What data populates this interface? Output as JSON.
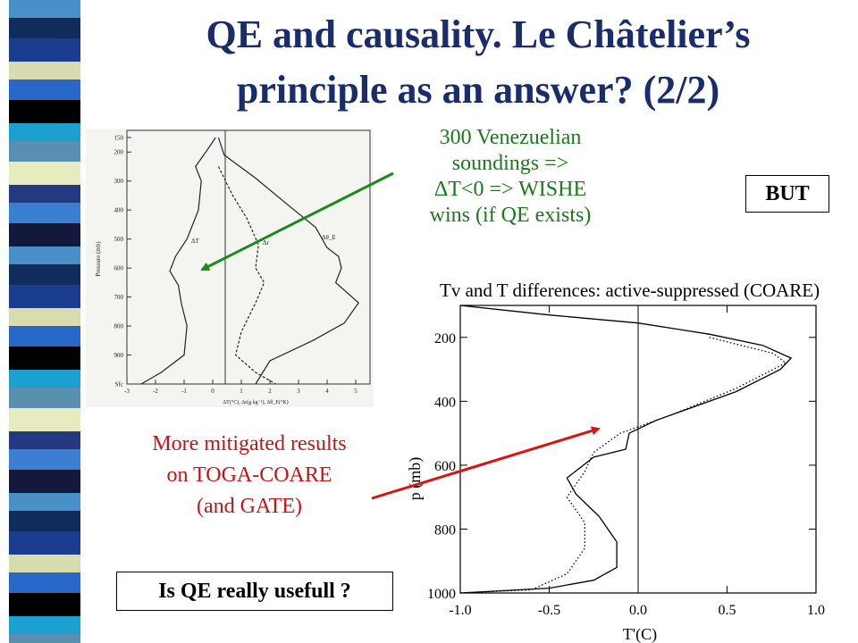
{
  "slide": {
    "title_line1": "QE and causality. Le Châtelier’s",
    "title_line2": "principle as an answer? (2/2)",
    "venezuela_note": [
      "300 Venezuelian",
      "soundings =>",
      "ΔT<0 => WISHE",
      "wins (if QE exists)"
    ],
    "but_label": "BUT",
    "coare_note": [
      "More mitigated results",
      "on TOGA-COARE",
      "(and GATE)"
    ],
    "question_label": "Is QE really usefull ?",
    "colors": {
      "title": "#1a2d6b",
      "green_note": "#1a7a1a",
      "red_note": "#cc1111",
      "green_arrow": "#1a8a1a",
      "red_arrow": "#dd1111"
    }
  },
  "chart_data": [
    {
      "type": "line",
      "xlabel": "ΔT(°C), Δr(g kg⁻¹), Δθ_E(°K)",
      "ylabel": "Pressure (mb)",
      "x_ticks": [
        "-3",
        "-2",
        "-1",
        "0",
        "1",
        "2",
        "3",
        "4",
        "5"
      ],
      "y_ticks": [
        "150",
        "200",
        "300",
        "400",
        "500",
        "600",
        "700",
        "800",
        "900",
        "Sfc"
      ],
      "xlim": [
        -3,
        5.5
      ],
      "series": [
        {
          "name": "ΔT",
          "points": [
            [
              0.1,
              150
            ],
            [
              -0.1,
              180
            ],
            [
              -0.6,
              250
            ],
            [
              -0.4,
              300
            ],
            [
              -0.5,
              400
            ],
            [
              -0.9,
              500
            ],
            [
              -1.3,
              560
            ],
            [
              -1.5,
              610
            ],
            [
              -1.2,
              660
            ],
            [
              -1.1,
              720
            ],
            [
              -0.9,
              800
            ],
            [
              -1.0,
              900
            ],
            [
              -1.8,
              960
            ],
            [
              -2.5,
              1000
            ]
          ]
        },
        {
          "name": "Δr",
          "points": [
            [
              0.2,
              250
            ],
            [
              0.7,
              350
            ],
            [
              1.2,
              430
            ],
            [
              1.6,
              520
            ],
            [
              1.5,
              600
            ],
            [
              1.8,
              650
            ],
            [
              1.5,
              720
            ],
            [
              1.0,
              820
            ],
            [
              0.8,
              900
            ],
            [
              1.5,
              960
            ],
            [
              2.2,
              1000
            ]
          ]
        },
        {
          "name": "Δθ_E",
          "points": [
            [
              0.2,
              150
            ],
            [
              0.4,
              210
            ],
            [
              1.5,
              290
            ],
            [
              2.6,
              380
            ],
            [
              3.6,
              460
            ],
            [
              4.0,
              530
            ],
            [
              4.4,
              560
            ],
            [
              4.5,
              600
            ],
            [
              4.3,
              650
            ],
            [
              5.1,
              720
            ],
            [
              4.6,
              790
            ],
            [
              3.5,
              850
            ],
            [
              2.0,
              920
            ],
            [
              1.5,
              1000
            ]
          ]
        }
      ]
    },
    {
      "type": "line",
      "title": "Tv and T differences: active-suppressed (COARE)",
      "xlabel": "T'(C)",
      "ylabel": "p (mb)",
      "xlim": [
        -1.0,
        1.0
      ],
      "ylim": [
        100,
        1000
      ],
      "x_ticks": [
        "-1.0",
        "-0.5",
        "0.0",
        "0.5",
        "1.0"
      ],
      "y_ticks": [
        "200",
        "400",
        "600",
        "800",
        "1000"
      ],
      "series": [
        {
          "points": [
            [
              -1.0,
              100
            ],
            [
              -0.5,
              130
            ],
            [
              0.0,
              155
            ],
            [
              0.4,
              190
            ],
            [
              0.7,
              225
            ],
            [
              0.86,
              265
            ],
            [
              0.8,
              300
            ],
            [
              0.55,
              370
            ],
            [
              0.3,
              420
            ],
            [
              0.1,
              460
            ],
            [
              -0.05,
              500
            ],
            [
              -0.07,
              550
            ],
            [
              -0.25,
              575
            ],
            [
              -0.4,
              640
            ],
            [
              -0.35,
              690
            ],
            [
              -0.22,
              760
            ],
            [
              -0.12,
              840
            ],
            [
              -0.12,
              920
            ],
            [
              -0.25,
              960
            ],
            [
              -0.5,
              985
            ],
            [
              -1.0,
              1000
            ]
          ]
        },
        {
          "points": [
            [
              0.4,
              200
            ],
            [
              0.76,
              250
            ],
            [
              0.83,
              280
            ],
            [
              0.55,
              360
            ],
            [
              0.2,
              440
            ],
            [
              -0.1,
              500
            ],
            [
              -0.25,
              560
            ],
            [
              -0.3,
              620
            ],
            [
              -0.4,
              700
            ],
            [
              -0.3,
              780
            ],
            [
              -0.3,
              860
            ],
            [
              -0.4,
              940
            ],
            [
              -0.6,
              990
            ],
            [
              -1.0,
              1000
            ]
          ]
        }
      ]
    }
  ]
}
